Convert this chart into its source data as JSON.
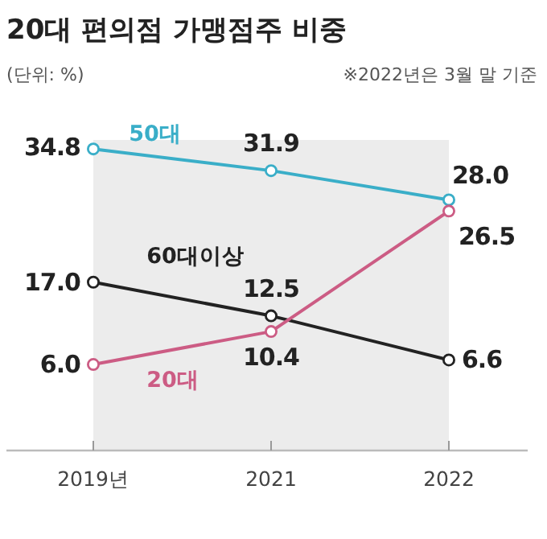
{
  "chart_data": {
    "type": "line",
    "title": "20대 편의점 가맹점주 비중",
    "annotations": [
      "(단위: %)",
      "※2022년은 3월 말 기준"
    ],
    "categories": [
      "2019년",
      "2021",
      "2022"
    ],
    "series": [
      {
        "name": "50대",
        "color": "#3aaec8",
        "values": [
          34.8,
          31.9,
          28.0
        ],
        "value_labels": [
          "34.8",
          "31.9",
          "28.0"
        ]
      },
      {
        "name": "60대이상",
        "color": "#222222",
        "values": [
          17.0,
          12.5,
          6.6
        ],
        "value_labels": [
          "17.0",
          "12.5",
          "6.6"
        ]
      },
      {
        "name": "20대",
        "color": "#cc5c84",
        "values": [
          6.0,
          10.4,
          26.5
        ],
        "value_labels": [
          "6.0",
          "10.4",
          "26.5"
        ]
      }
    ],
    "ylim": [
      -5.5,
      36
    ],
    "bands": [
      {
        "axis": "x",
        "from": "2019년",
        "to": "2022",
        "color": "#ececec"
      }
    ],
    "marker": "circle"
  }
}
